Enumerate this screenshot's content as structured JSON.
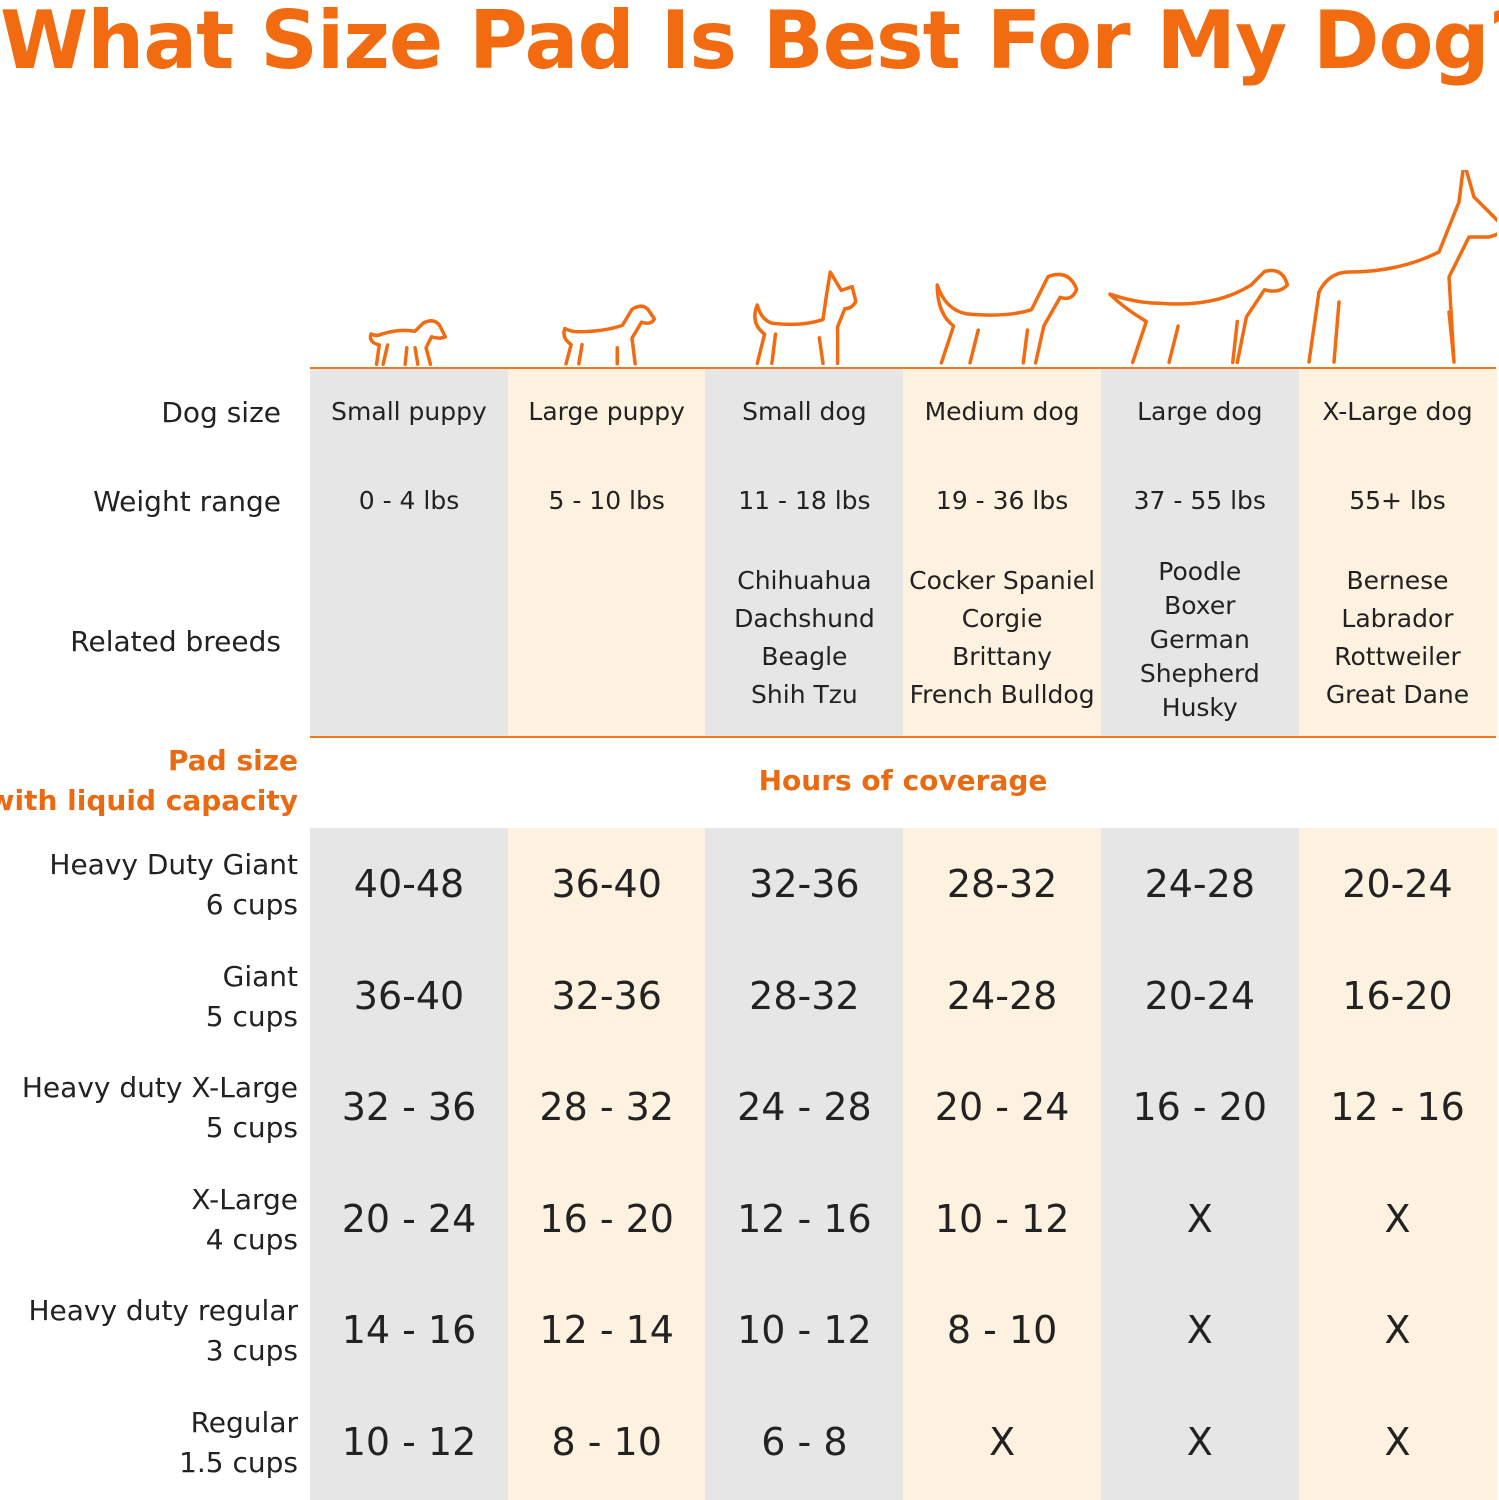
{
  "title": "What Size Pad Is Best For My Dog?",
  "colors": {
    "accent": "#f26b10",
    "grey_column": "#e6e6e6",
    "cream_column": "#fdf1df"
  },
  "columns": [
    {
      "dog_size": "Small puppy",
      "weight": "0 - 4 lbs",
      "breeds": [],
      "icon": "small-puppy-icon"
    },
    {
      "dog_size": "Large puppy",
      "weight": "5 - 10 lbs",
      "breeds": [],
      "icon": "large-puppy-icon"
    },
    {
      "dog_size": "Small dog",
      "weight": "11 - 18 lbs",
      "breeds": [
        "Chihuahua",
        "Dachshund",
        "Beagle",
        "Shih Tzu"
      ],
      "icon": "small-dog-icon"
    },
    {
      "dog_size": "Medium dog",
      "weight": "19 - 36 lbs",
      "breeds": [
        "Cocker Spaniel",
        "Corgie",
        "Brittany",
        "French Bulldog"
      ],
      "icon": "medium-dog-icon"
    },
    {
      "dog_size": "Large dog",
      "weight": "37 - 55 lbs",
      "breeds": [
        "Poodle",
        "Boxer",
        "German",
        "Shepherd",
        "Husky"
      ],
      "icon": "large-dog-icon"
    },
    {
      "dog_size": "X-Large dog",
      "weight": "55+ lbs",
      "breeds": [
        "Bernese",
        "Labrador",
        "Rottweiler",
        "Great Dane"
      ],
      "icon": "xlarge-dog-icon"
    }
  ],
  "row_labels": {
    "dog_size": "Dog size",
    "weight": "Weight range",
    "breeds": "Related breeds"
  },
  "pad_header": {
    "line1": "Pad size",
    "line2": "with liquid capacity"
  },
  "coverage_header": "Hours of coverage",
  "pads": [
    {
      "name": "Heavy Duty Giant",
      "capacity": "6 cups",
      "hours": [
        "40-48",
        "36-40",
        "32-36",
        "28-32",
        "24-28",
        "20-24"
      ]
    },
    {
      "name": "Giant",
      "capacity": "5 cups",
      "hours": [
        "36-40",
        "32-36",
        "28-32",
        "24-28",
        "20-24",
        "16-20"
      ]
    },
    {
      "name": "Heavy duty X-Large",
      "capacity": "5 cups",
      "hours": [
        "32 - 36",
        "28 - 32",
        "24 - 28",
        "20 - 24",
        "16 - 20",
        "12 - 16"
      ]
    },
    {
      "name": "X-Large",
      "capacity": "4 cups",
      "hours": [
        "20 - 24",
        "16 - 20",
        "12 - 16",
        "10 - 12",
        "X",
        "X"
      ]
    },
    {
      "name": "Heavy duty regular",
      "capacity": "3 cups",
      "hours": [
        "14 - 16",
        "12 - 14",
        "10 - 12",
        "8 - 10",
        "X",
        "X"
      ]
    },
    {
      "name": "Regular",
      "capacity": "1.5 cups",
      "hours": [
        "10 - 12",
        "8 - 10",
        "6 - 8",
        "X",
        "X",
        "X"
      ]
    }
  ]
}
